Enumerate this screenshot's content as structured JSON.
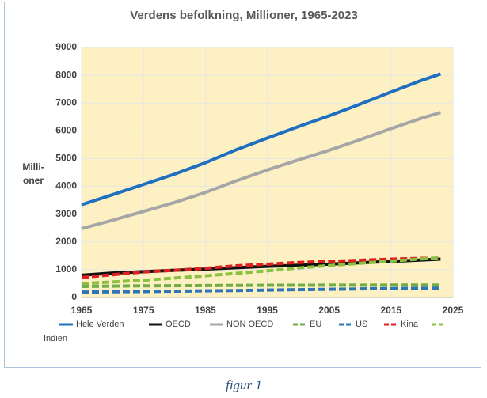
{
  "chart_data": {
    "type": "line",
    "title": "Verdens befolkning, Millioner, 1965-2023",
    "ylabel": [
      "Milli-",
      "oner"
    ],
    "caption": "figur 1",
    "x": [
      1965,
      1970,
      1975,
      1980,
      1985,
      1990,
      1995,
      2000,
      2005,
      2010,
      2015,
      2020,
      2023
    ],
    "series": [
      {
        "name": "Hele Verden",
        "color": "#1f6fc0",
        "style": "solid",
        "values": [
          3340,
          3700,
          4070,
          4440,
          4850,
          5320,
          5740,
          6150,
          6540,
          6960,
          7400,
          7820,
          8050
        ]
      },
      {
        "name": "OECD",
        "color": "#111111",
        "style": "solid",
        "values": [
          800,
          880,
          930,
          980,
          1020,
          1070,
          1120,
          1160,
          1200,
          1250,
          1300,
          1350,
          1380
        ]
      },
      {
        "name": "NON OECD",
        "color": "#a6a6a6",
        "style": "solid",
        "values": [
          2480,
          2780,
          3100,
          3420,
          3780,
          4200,
          4590,
          4950,
          5300,
          5680,
          6080,
          6460,
          6660
        ]
      },
      {
        "name": "EU",
        "color": "#70ad47",
        "style": "dashed",
        "values": [
          400,
          410,
          420,
          425,
          430,
          435,
          440,
          440,
          445,
          445,
          447,
          447,
          448
        ]
      },
      {
        "name": "US",
        "color": "#2e75b6",
        "style": "dashed",
        "values": [
          195,
          205,
          215,
          227,
          238,
          250,
          266,
          282,
          295,
          309,
          321,
          331,
          335
        ]
      },
      {
        "name": "Kina",
        "color": "#e02020",
        "style": "dashed",
        "values": [
          720,
          820,
          920,
          980,
          1050,
          1140,
          1200,
          1260,
          1300,
          1340,
          1380,
          1410,
          1410
        ]
      },
      {
        "name": "Indien",
        "color": "#8cc040",
        "style": "dashed",
        "values": [
          500,
          560,
          620,
          700,
          780,
          870,
          960,
          1060,
          1150,
          1230,
          1310,
          1390,
          1430
        ]
      }
    ],
    "xlim": [
      1965,
      2025
    ],
    "xticks": [
      1965,
      1975,
      1985,
      1995,
      2005,
      2015,
      2025
    ],
    "ylim": [
      0,
      9000
    ],
    "yticks": [
      0,
      1000,
      2000,
      3000,
      4000,
      5000,
      6000,
      7000,
      8000,
      9000
    ],
    "grid": true,
    "legend": "bottom"
  }
}
